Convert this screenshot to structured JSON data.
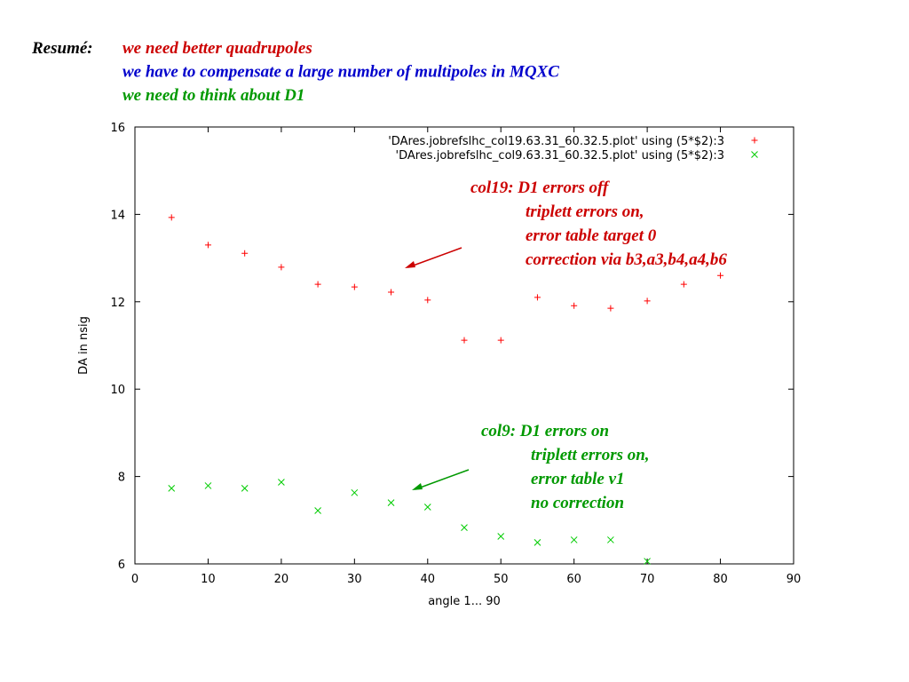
{
  "slide": {
    "heading": "Resumé:",
    "lines": [
      {
        "text": "we need better quadrupoles",
        "color": "#cc0000"
      },
      {
        "text": "we have to compensate a large number of multipoles in MQXC",
        "color": "#0000cc"
      },
      {
        "text": "we need to think about D1",
        "color": "#009900"
      }
    ]
  },
  "chart_data": {
    "type": "scatter",
    "xlabel": "angle 1... 90",
    "ylabel": "DA in nsig",
    "xlim": [
      0,
      90
    ],
    "xticks": [
      0,
      10,
      20,
      30,
      40,
      50,
      60,
      70,
      80,
      90
    ],
    "ylim": [
      6,
      16
    ],
    "yticks": [
      6,
      8,
      10,
      12,
      14,
      16
    ],
    "legend": "top-right",
    "series": [
      {
        "name": "'DAres.jobrefslhc_col19.63.31_60.32.5.plot' using (5*$2):3",
        "color": "#ff0000",
        "marker": "plus",
        "x": [
          5,
          10,
          15,
          20,
          25,
          30,
          35,
          40,
          45,
          50,
          55,
          60,
          65,
          70,
          75,
          80
        ],
        "values": [
          13.93,
          13.3,
          13.11,
          12.79,
          12.4,
          12.34,
          12.22,
          12.04,
          11.12,
          11.12,
          12.1,
          11.91,
          11.85,
          12.02,
          12.4,
          12.6
        ]
      },
      {
        "name": "'DAres.jobrefslhc_col9.63.31_60.32.5.plot' using (5*$2):3",
        "color": "#00cc00",
        "marker": "cross",
        "x": [
          5,
          10,
          15,
          20,
          25,
          30,
          35,
          40,
          45,
          50,
          55,
          60,
          65,
          70
        ],
        "values": [
          7.73,
          7.79,
          7.73,
          7.87,
          7.22,
          7.63,
          7.4,
          7.3,
          6.83,
          6.63,
          6.49,
          6.55,
          6.55,
          6.06
        ]
      }
    ],
    "annotations": [
      {
        "color": "#cc0000",
        "lines": [
          "col19: D1 errors off",
          "triplett errors on,",
          "error table target 0",
          "correction via b3,a3,b4,a4,b6"
        ]
      },
      {
        "color": "#009900",
        "lines": [
          "col9: D1 errors on",
          "triplett errors on,",
          "error table v1",
          "no correction"
        ]
      }
    ]
  }
}
